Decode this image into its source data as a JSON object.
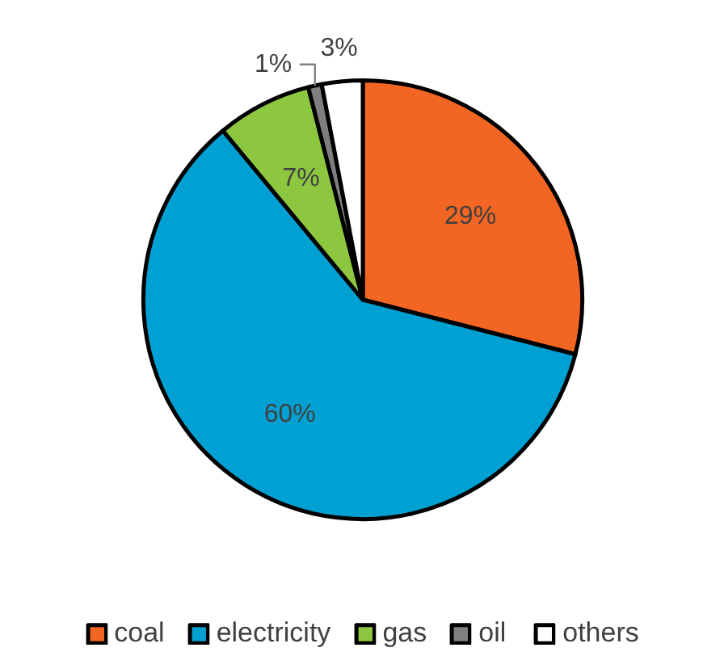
{
  "chart_data": {
    "type": "pie",
    "categories": [
      "coal",
      "electricity",
      "gas",
      "oil",
      "others"
    ],
    "values": [
      29,
      60,
      7,
      1,
      3
    ],
    "value_labels": [
      "29%",
      "60%",
      "7%",
      "1%",
      "3%"
    ],
    "colors": [
      "#f26522",
      "#00a0d2",
      "#8dc63f",
      "#7f7f7f",
      "#ffffff"
    ],
    "legend": "bottom"
  }
}
